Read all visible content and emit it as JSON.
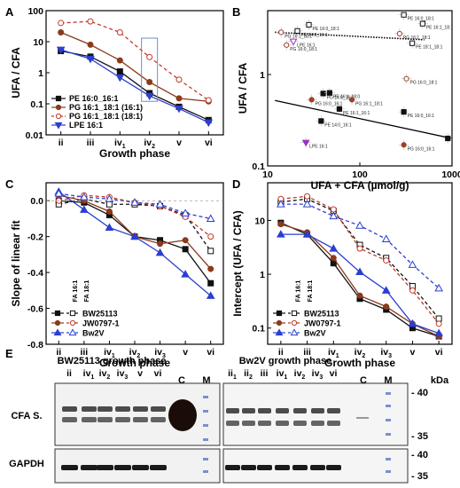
{
  "panels": {
    "A": "A",
    "B": "B",
    "C": "C",
    "D": "D",
    "E": "E"
  },
  "chart_data": [
    {
      "id": "A",
      "type": "line",
      "xlabel": "Growth phase",
      "ylabel": "UFA / CFA",
      "yscale": "log",
      "ylim": [
        0.01,
        100
      ],
      "yticks": [
        0.01,
        0.1,
        1,
        10,
        100
      ],
      "ytick_labels": [
        "0.01",
        "0.1",
        "1",
        "10",
        "100"
      ],
      "categories": [
        "ii",
        "iii",
        "iv1",
        "iv2",
        "v",
        "vi"
      ],
      "category_labels": [
        [
          "ii",
          ""
        ],
        [
          "iii",
          ""
        ],
        [
          "iv",
          "1"
        ],
        [
          "iv",
          "2"
        ],
        [
          "v",
          ""
        ],
        [
          "vi",
          ""
        ]
      ],
      "legend_position": "bottom-left",
      "series": [
        {
          "name": "PE 16:0_16:1",
          "color": "#111111",
          "marker": "square",
          "filled": true,
          "dashed": false,
          "values": [
            5,
            3.3,
            1.1,
            0.22,
            0.08,
            0.03
          ]
        },
        {
          "name": "PG 16:1_18:1 (16:1)",
          "color": "#8b3a1a",
          "marker": "circle",
          "filled": true,
          "dashed": false,
          "values": [
            20,
            8,
            2.5,
            0.5,
            0.15,
            0.12
          ]
        },
        {
          "name": "PG 16:1_18:1 (18:1)",
          "color": "#c0392b",
          "marker": "circle",
          "filled": false,
          "dashed": true,
          "values": [
            40,
            45,
            20,
            3.2,
            0.6,
            0.13
          ]
        },
        {
          "name": "LPE 16:1",
          "color": "#2b3fd1",
          "marker": "triangle-down",
          "filled": true,
          "dashed": false,
          "values": [
            5.5,
            2.8,
            0.7,
            0.18,
            0.07,
            0.025
          ]
        }
      ]
    },
    {
      "id": "B",
      "type": "scatter",
      "xlabel": "UFA + CFA (µmol/g)",
      "ylabel": "UFA / CFA",
      "xscale": "log",
      "yscale": "log",
      "xlim": [
        10,
        1000
      ],
      "ylim": [
        0.1,
        5
      ],
      "xticks": [
        10,
        100,
        1000
      ],
      "xtick_labels": [
        "10",
        "100",
        "1000"
      ],
      "yticks": [
        0.1,
        1
      ],
      "ytick_labels": [
        "0.1",
        "1"
      ],
      "fit_lines": [
        {
          "style": "solid",
          "from": [
            12,
            0.52
          ],
          "to": [
            1000,
            0.2
          ]
        },
        {
          "style": "dotted",
          "from": [
            12,
            2.9
          ],
          "to": [
            500,
            2.4
          ]
        }
      ],
      "points": [
        {
          "x": 28,
          "y": 3.5,
          "label": "PE 16:0_18:1",
          "marker": "square",
          "filled": false
        },
        {
          "x": 21,
          "y": 3.0,
          "label": "PE 14:0_16:1",
          "marker": "square",
          "filled": false
        },
        {
          "x": 14,
          "y": 2.9,
          "label": "PG 16:1_18:1",
          "marker": "circle",
          "filled": false
        },
        {
          "x": 19,
          "y": 2.3,
          "label": "LPE 16:1",
          "marker": "triangle-down",
          "filled": false
        },
        {
          "x": 16,
          "y": 2.1,
          "label": "PG 16:0_18:1",
          "marker": "circle",
          "filled": false
        },
        {
          "x": 300,
          "y": 4.5,
          "label": "PE 16:0_18:1",
          "marker": "square",
          "filled": false
        },
        {
          "x": 270,
          "y": 2.8,
          "label": "PG 16:1_18:1",
          "marker": "circle",
          "filled": false
        },
        {
          "x": 480,
          "y": 3.6,
          "label": "PE 16:1_18:1",
          "marker": "square",
          "filled": false
        },
        {
          "x": 370,
          "y": 2.2,
          "label": "PE 18:1_18:1",
          "marker": "square",
          "filled": false
        },
        {
          "x": 320,
          "y": 0.9,
          "label": "PG 16:0_18:1",
          "marker": "circle",
          "filled": false
        },
        {
          "x": 40,
          "y": 0.62,
          "label": "PG 14:0_16:1",
          "marker": "square",
          "filled": true
        },
        {
          "x": 47,
          "y": 0.63,
          "label": "PE 16:1_18:0",
          "marker": "square",
          "filled": true
        },
        {
          "x": 30,
          "y": 0.53,
          "label": "PG 16:0_16:1",
          "marker": "circle",
          "filled": true
        },
        {
          "x": 60,
          "y": 0.42,
          "label": "PE 16:1_16:1",
          "marker": "square",
          "filled": true
        },
        {
          "x": 38,
          "y": 0.31,
          "label": "PE 14:0_16:1",
          "marker": "square",
          "filled": true
        },
        {
          "x": 82,
          "y": 0.53,
          "label": "PG 16:1_18:1",
          "marker": "circle",
          "filled": true
        },
        {
          "x": 26,
          "y": 0.18,
          "label": "LPE 16:1",
          "marker": "triangle-down",
          "filled": true
        },
        {
          "x": 300,
          "y": 0.17,
          "label": "PG 16:0_16:1",
          "marker": "circle",
          "filled": true
        },
        {
          "x": 300,
          "y": 0.39,
          "label": "PE 16:0_16:1",
          "marker": "square",
          "filled": true
        },
        {
          "x": 900,
          "y": 0.2,
          "label": "PE 16:0_16:1",
          "marker": "square",
          "filled": true
        }
      ]
    },
    {
      "id": "C",
      "type": "line",
      "xlabel": "Growth phase",
      "ylabel": "Slope of linear fit",
      "ylim": [
        -0.8,
        0.1
      ],
      "yticks": [
        -0.8,
        -0.6,
        -0.4,
        -0.2,
        0.0
      ],
      "ytick_labels": [
        "-0.8",
        "-0.6",
        "-0.4",
        "-0.2",
        "0.0"
      ],
      "categories": [
        "ii",
        "iii",
        "iv1",
        "iv2",
        "iv3",
        "v",
        "vi"
      ],
      "category_labels": [
        [
          "ii",
          ""
        ],
        [
          "iii",
          ""
        ],
        [
          "iv",
          "1"
        ],
        [
          "iv",
          "2"
        ],
        [
          "iv",
          "3"
        ],
        [
          "v",
          ""
        ],
        [
          "vi",
          ""
        ]
      ],
      "annotations": [
        "FA 16:1",
        "FA 18:1"
      ],
      "legend_position": "bottom-left",
      "series": [
        {
          "name": "BW25113",
          "group": "BW25113",
          "fa": "16:1",
          "color": "#111111",
          "marker": "square",
          "filled": true,
          "dashed": false,
          "values": [
            0.0,
            -0.01,
            -0.08,
            -0.2,
            -0.22,
            -0.27,
            -0.46
          ]
        },
        {
          "name": "BW25113",
          "group": "BW25113",
          "fa": "18:1",
          "color": "#111111",
          "marker": "square",
          "filled": false,
          "dashed": true,
          "values": [
            -0.02,
            0.01,
            -0.02,
            -0.02,
            -0.03,
            -0.08,
            -0.28
          ]
        },
        {
          "name": "JW0797-1",
          "group": "JW0797-1",
          "fa": "16:1",
          "color": "#8b3a1a",
          "marker": "circle",
          "filled": true,
          "dashed": false,
          "values": [
            0.03,
            0.0,
            -0.06,
            -0.2,
            -0.24,
            -0.22,
            -0.38
          ]
        },
        {
          "name": "JW0797-1",
          "group": "JW0797-1",
          "fa": "18:1",
          "color": "#c0392b",
          "marker": "circle",
          "filled": false,
          "dashed": true,
          "values": [
            0.0,
            0.03,
            0.02,
            -0.01,
            -0.03,
            -0.09,
            -0.2
          ]
        },
        {
          "name": "Bw2V",
          "group": "Bw2V",
          "fa": "16:1",
          "color": "#2b3fd1",
          "marker": "triangle",
          "filled": true,
          "dashed": false,
          "values": [
            0.05,
            -0.05,
            -0.15,
            -0.2,
            -0.29,
            -0.41,
            -0.53
          ]
        },
        {
          "name": "Bw2V",
          "group": "Bw2V",
          "fa": "18:1",
          "color": "#2b3fd1",
          "marker": "triangle",
          "filled": false,
          "dashed": true,
          "values": [
            0.04,
            0.02,
            0.01,
            -0.01,
            -0.02,
            -0.07,
            -0.1
          ]
        }
      ]
    },
    {
      "id": "D",
      "type": "line",
      "xlabel": "Growth phase",
      "ylabel": "Intercept (UFA / CFA)",
      "yscale": "log",
      "ylim": [
        0.05,
        50
      ],
      "yticks": [
        0.1,
        1,
        10
      ],
      "ytick_labels": [
        "0.1",
        "1",
        "10"
      ],
      "categories": [
        "ii",
        "iii",
        "iv1",
        "iv2",
        "iv3",
        "v",
        "vi"
      ],
      "category_labels": [
        [
          "ii",
          ""
        ],
        [
          "iii",
          ""
        ],
        [
          "iv",
          "1"
        ],
        [
          "iv",
          "2"
        ],
        [
          "iv",
          "3"
        ],
        [
          "v",
          ""
        ],
        [
          "vi",
          ""
        ]
      ],
      "annotations": [
        "FA 16:1",
        "FA 18:1"
      ],
      "legend_position": "bottom-left",
      "series": [
        {
          "name": "BW25113",
          "group": "BW25113",
          "fa": "16:1",
          "color": "#111111",
          "marker": "square",
          "filled": true,
          "dashed": false,
          "values": [
            9,
            5.5,
            1.6,
            0.35,
            0.22,
            0.1,
            0.07
          ]
        },
        {
          "name": "BW25113",
          "group": "BW25113",
          "fa": "18:1",
          "color": "#111111",
          "marker": "square",
          "filled": false,
          "dashed": true,
          "values": [
            22,
            25,
            15,
            3.5,
            2,
            0.6,
            0.15
          ]
        },
        {
          "name": "JW0797-1",
          "group": "JW0797-1",
          "fa": "16:1",
          "color": "#8b3a1a",
          "marker": "circle",
          "filled": true,
          "dashed": false,
          "values": [
            8.5,
            6,
            2,
            0.4,
            0.25,
            0.12,
            0.07
          ]
        },
        {
          "name": "JW0797-1",
          "group": "JW0797-1",
          "fa": "18:1",
          "color": "#c0392b",
          "marker": "circle",
          "filled": false,
          "dashed": true,
          "values": [
            25,
            28,
            16,
            3,
            1.8,
            0.5,
            0.12
          ]
        },
        {
          "name": "Bw2V",
          "group": "Bw2V",
          "fa": "16:1",
          "color": "#2b3fd1",
          "marker": "triangle",
          "filled": true,
          "dashed": false,
          "values": [
            5.5,
            5.5,
            3,
            1.1,
            0.5,
            0.12,
            0.08
          ]
        },
        {
          "name": "Bw2V",
          "group": "Bw2V",
          "fa": "18:1",
          "color": "#2b3fd1",
          "marker": "triangle",
          "filled": false,
          "dashed": true,
          "values": [
            20,
            20,
            12,
            8,
            4.5,
            1.5,
            0.55
          ]
        }
      ]
    }
  ],
  "blot": {
    "label": "E",
    "left_title": "BW25113 growth phase",
    "right_title": "Bw2V growth phase",
    "left_lanes": [
      [
        "ii",
        ""
      ],
      [
        "iv",
        "1"
      ],
      [
        "iv",
        "2"
      ],
      [
        "iv",
        "3"
      ],
      [
        "v",
        ""
      ],
      [
        "vi",
        ""
      ]
    ],
    "right_lanes": [
      [
        "ii",
        "1"
      ],
      [
        "ii",
        "2"
      ],
      [
        "iii",
        ""
      ],
      [
        "iv",
        "1"
      ],
      [
        "iv",
        "2"
      ],
      [
        "iv",
        "3"
      ],
      [
        "vi",
        ""
      ]
    ],
    "control_label": "C",
    "marker_label": "M",
    "unit_label": "kDa",
    "row_labels": [
      "CFA S.",
      "GAPDH"
    ],
    "kda_marks": [
      "- 40",
      "- 35",
      "- 40",
      "- 35"
    ]
  }
}
